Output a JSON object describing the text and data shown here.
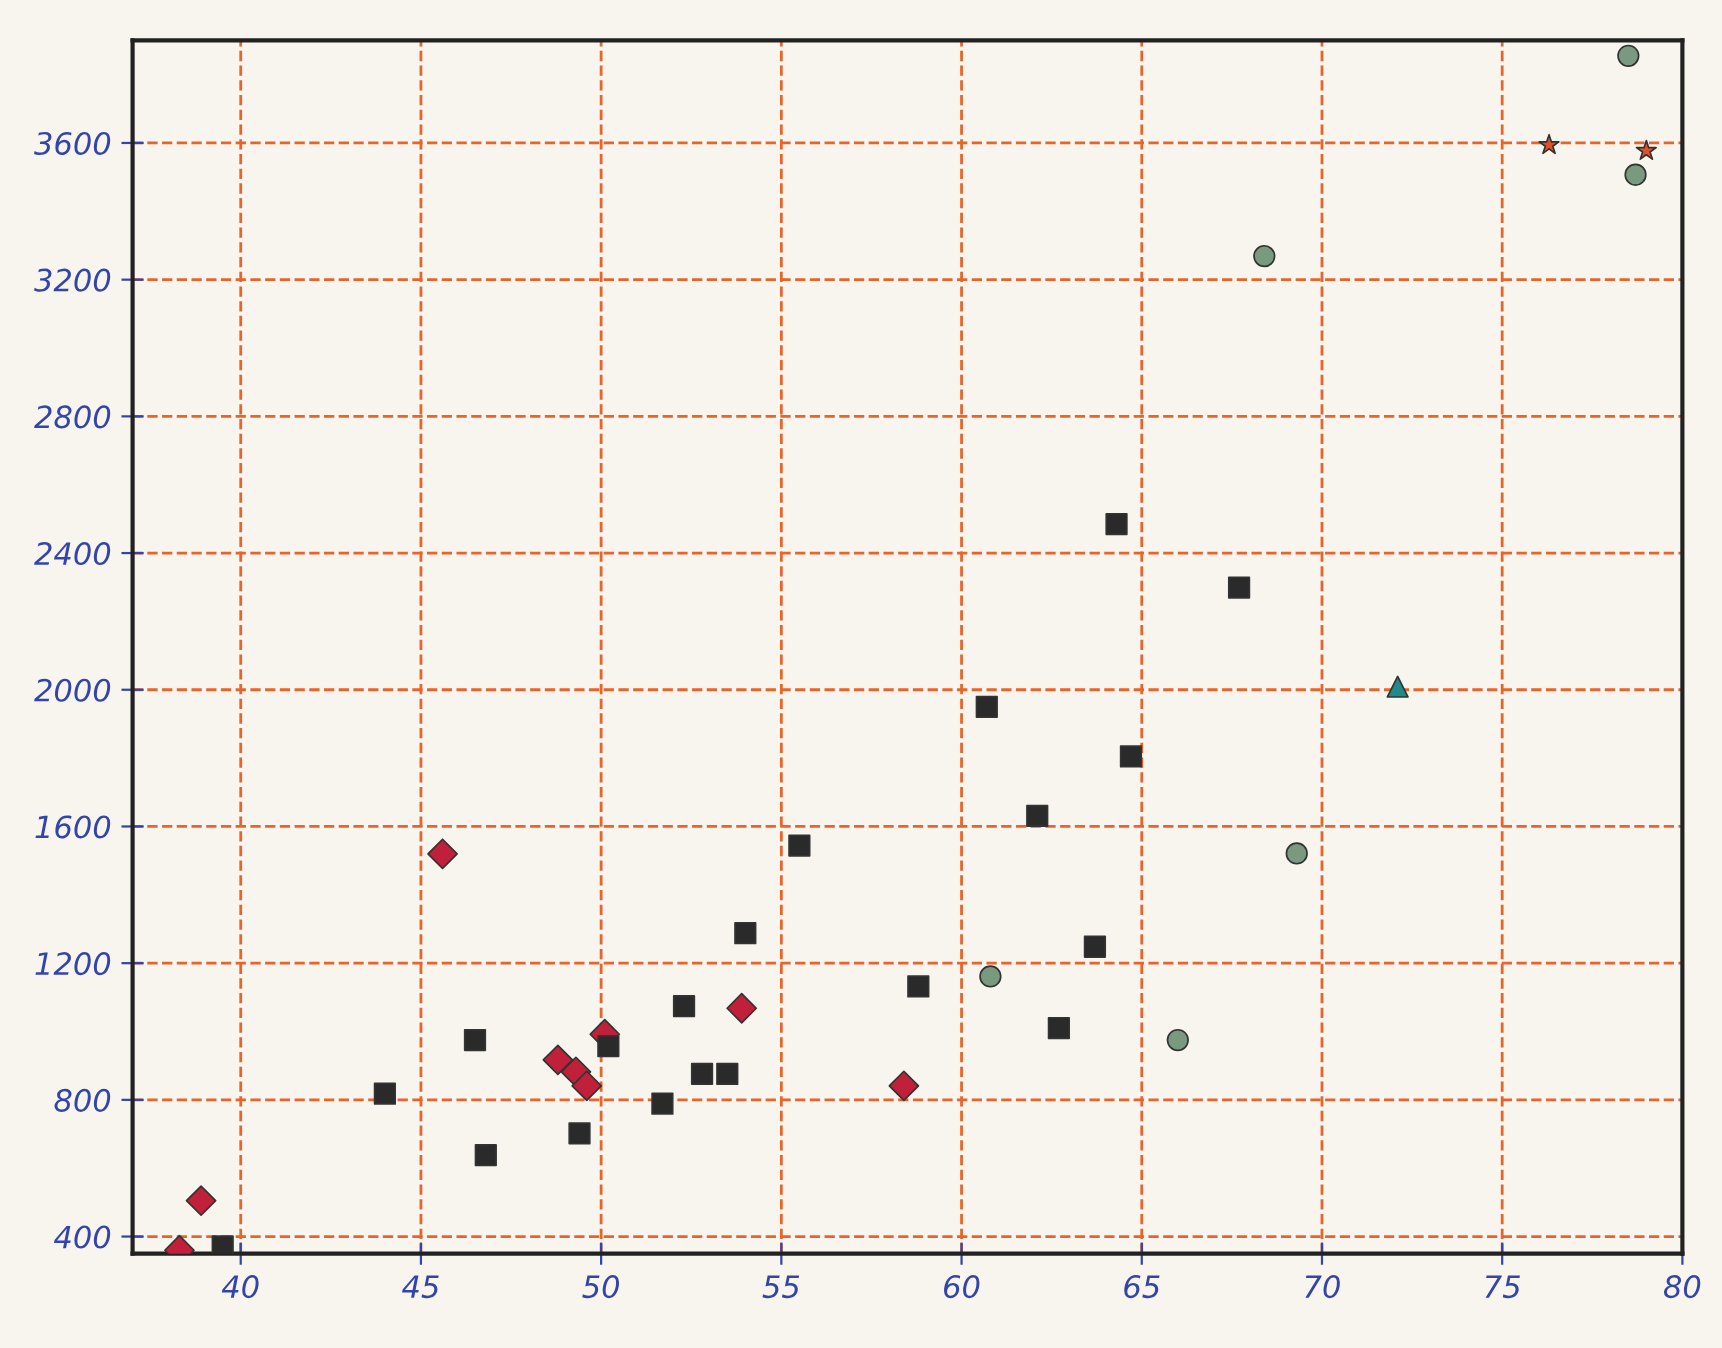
{
  "chart_data": {
    "type": "scatter",
    "xlim": [
      37,
      80
    ],
    "xticks": [
      40,
      45,
      50,
      55,
      60,
      65,
      70,
      75,
      80
    ],
    "ylim": [
      350,
      3900
    ],
    "yticks": [
      400,
      800,
      1200,
      1600,
      2000,
      2400,
      2800,
      3200,
      3600
    ],
    "grid": true,
    "legend": false,
    "series": [
      {
        "color": "#c0203a",
        "marker": "diamond",
        "x": [
          38.3,
          38.9,
          45.6,
          48.8,
          49.3,
          49.6,
          50.1,
          53.9,
          58.4
        ],
        "values": [
          360,
          505,
          1520,
          917,
          882,
          841,
          992,
          1068,
          841
        ]
      },
      {
        "color": "#2a2a2a",
        "marker": "square",
        "x": [
          39.5,
          44.0,
          46.5,
          46.8,
          49.4,
          50.2,
          51.7,
          52.3,
          52.8,
          53.5,
          54.0,
          55.5,
          58.8,
          60.7,
          62.1,
          62.7,
          63.7,
          64.3,
          64.7,
          67.7
        ],
        "values": [
          371,
          818,
          975,
          638,
          702,
          957,
          789,
          1074,
          876,
          876,
          1288,
          1544,
          1132,
          1950,
          1631,
          1010,
          1248,
          2485,
          1805,
          2299
        ]
      },
      {
        "color": "#7a9a80",
        "marker": "circle",
        "x": [
          60.8,
          66.0,
          68.4,
          69.3,
          78.5,
          78.7
        ],
        "values": [
          1161,
          975,
          3269,
          1521,
          3855,
          3507
        ]
      },
      {
        "color": "#1f8a8a",
        "marker": "triangle",
        "x": [
          72.1
        ],
        "values": [
          2009
        ]
      },
      {
        "color": "#e0502a",
        "marker": "star",
        "x": [
          76.3,
          79.0
        ],
        "values": [
          3594,
          3577
        ]
      }
    ]
  }
}
